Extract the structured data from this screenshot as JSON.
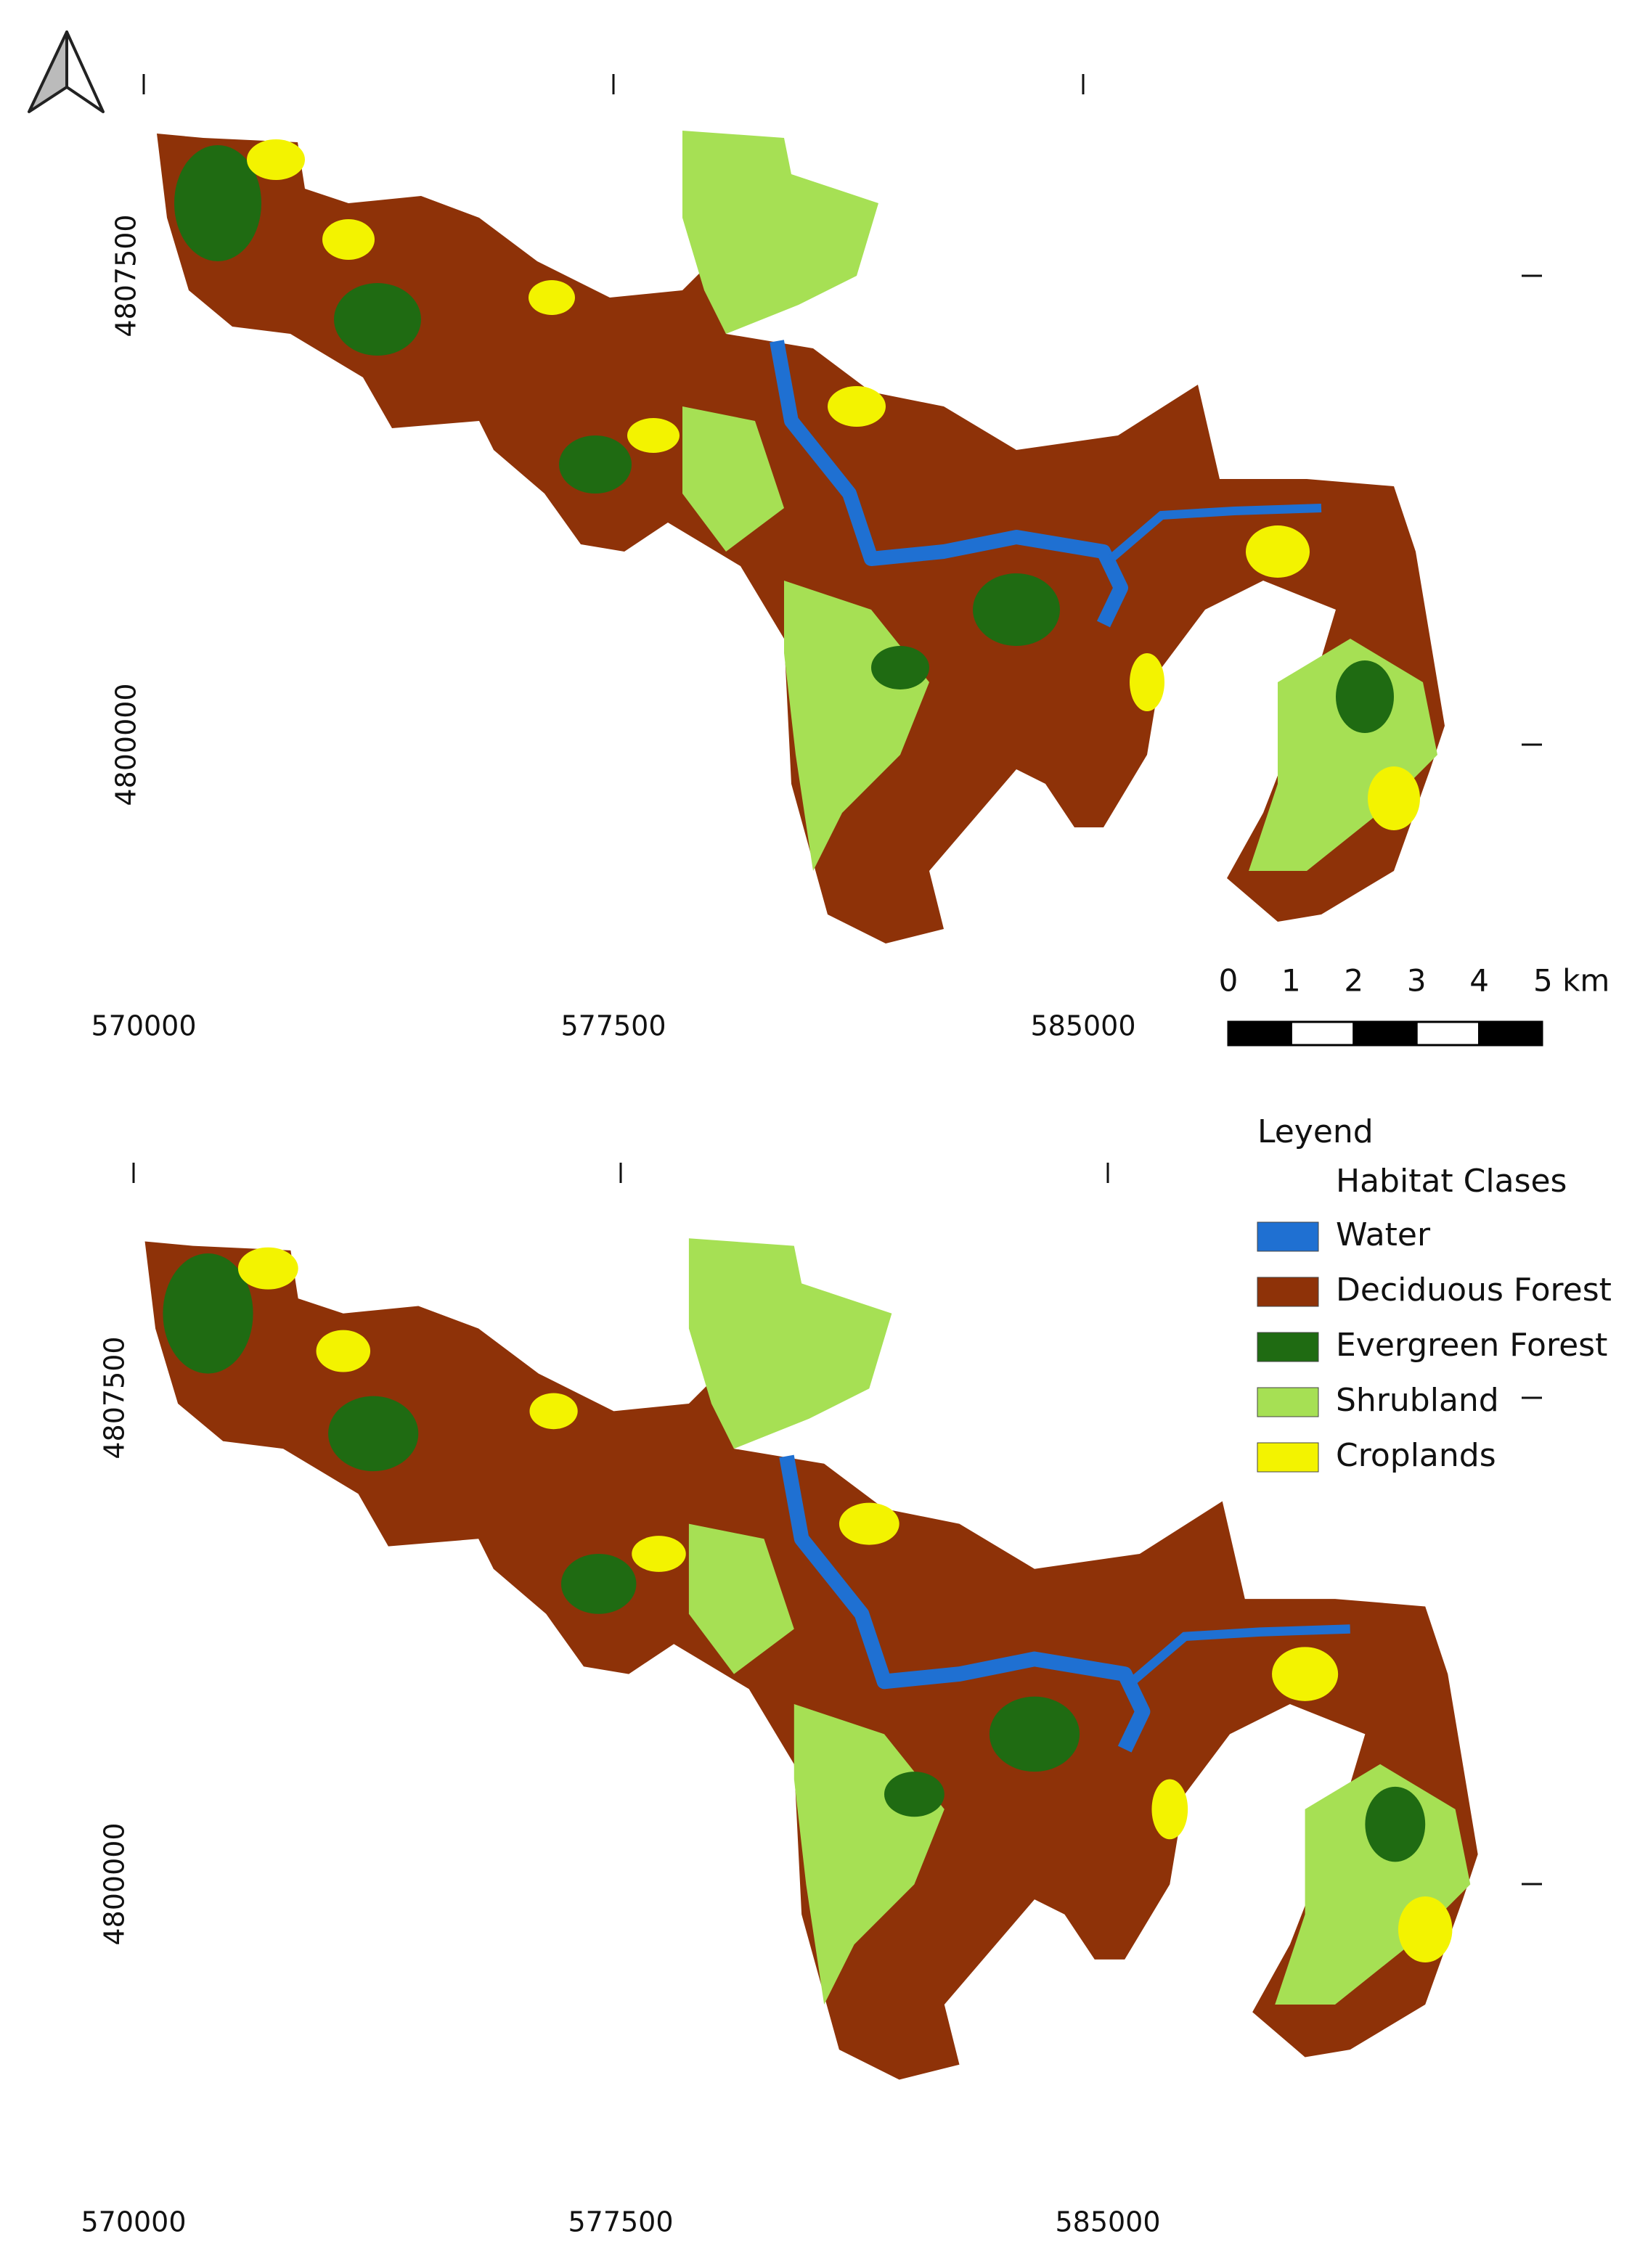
{
  "maps": [
    {
      "xticks": [
        570000,
        577500,
        585000
      ],
      "yticks": [
        4807500,
        4800000
      ]
    },
    {
      "xticks": [
        570000,
        577500,
        585000
      ],
      "yticks": [
        4807500,
        4800000
      ]
    }
  ],
  "scale_bar": {
    "ticks": [
      0,
      1,
      2,
      3,
      4,
      {
        "value": 5,
        "label": "5 km"
      }
    ]
  },
  "legend": {
    "title": "Leyend",
    "subtitle": "Habitat Clases",
    "items": [
      {
        "label": "Water",
        "color": "#1f70d2"
      },
      {
        "label": "Deciduous Forest",
        "color": "#8e3208"
      },
      {
        "label": "Evergreen Forest",
        "color": "#1f6b12"
      },
      {
        "label": "Shrubland",
        "color": "#a6e054"
      },
      {
        "label": "Croplands",
        "color": "#f3f300"
      }
    ]
  }
}
